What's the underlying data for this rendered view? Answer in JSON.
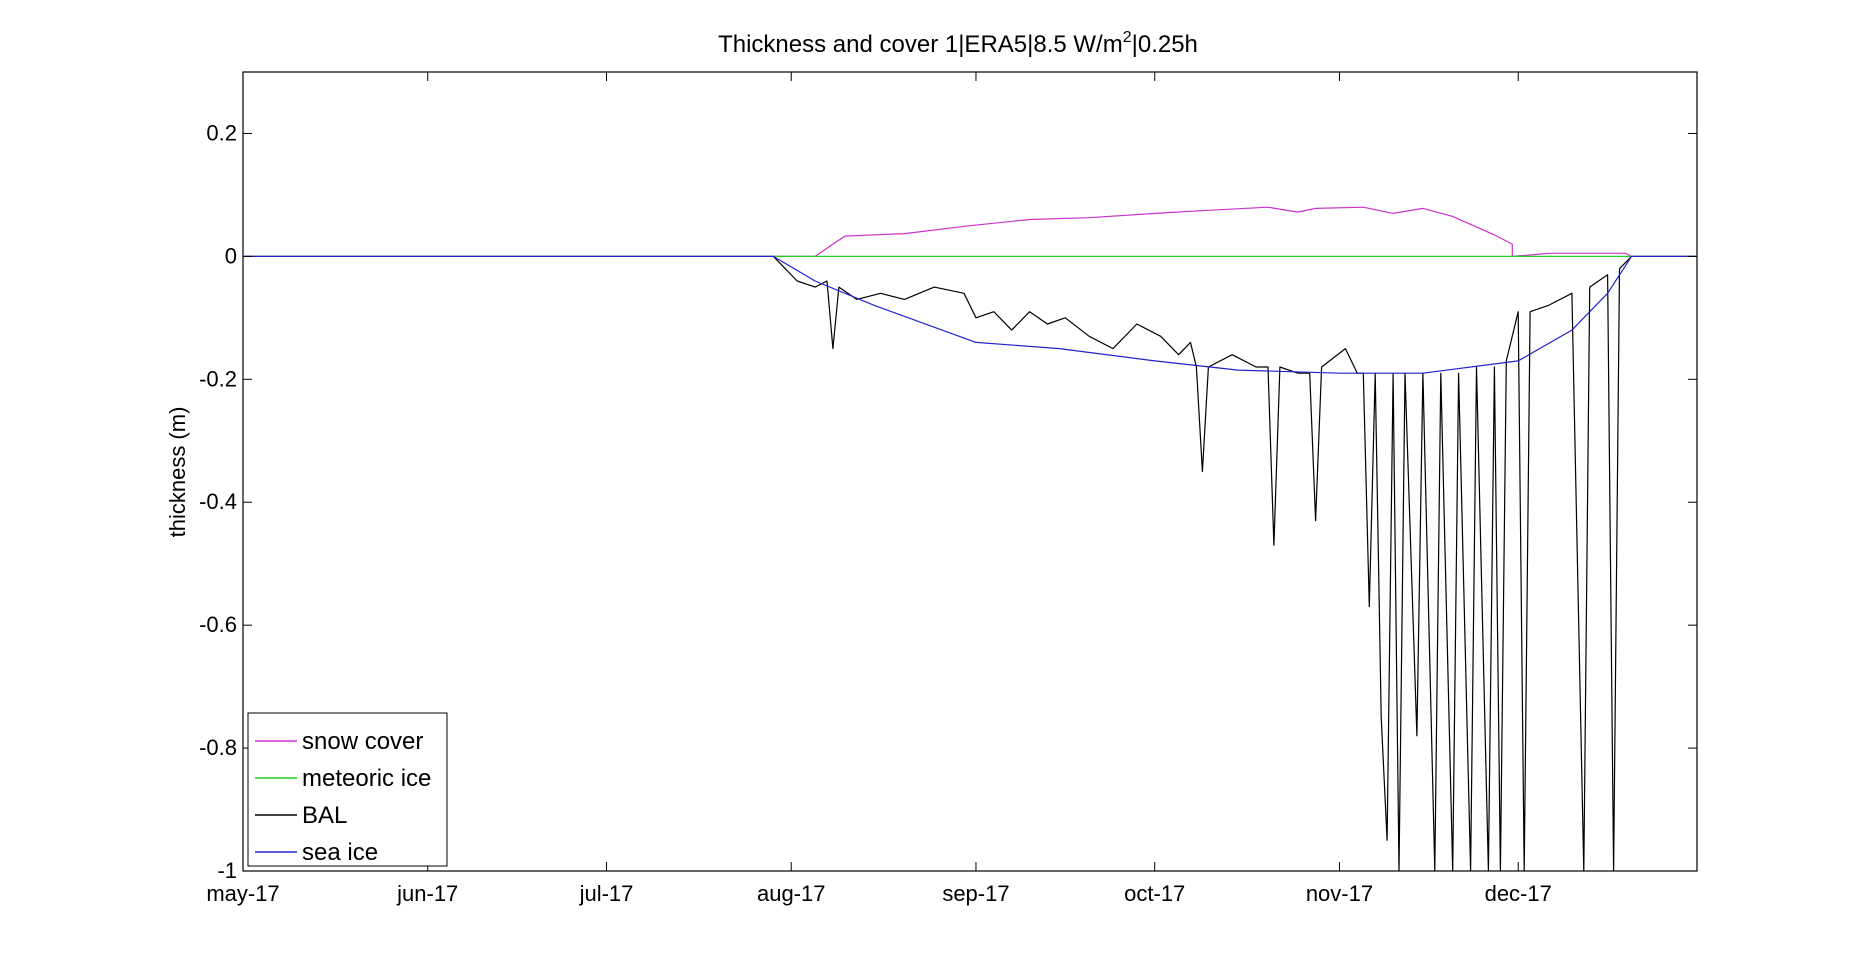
{
  "chart_data": {
    "type": "line",
    "title": {
      "main": "Thickness and cover 1|ERA5|8.5 W/m",
      "sup": "2",
      "tail": "|0.25h"
    },
    "xlabel": "",
    "ylabel": "thickness (m)",
    "x_range": [
      "2017-05-01",
      "2017-12-31"
    ],
    "ylim": [
      -1,
      0.3
    ],
    "x_ticks": [
      {
        "date": "2017-05-01",
        "label": "may-17"
      },
      {
        "date": "2017-06-01",
        "label": "jun-17"
      },
      {
        "date": "2017-07-01",
        "label": "jul-17"
      },
      {
        "date": "2017-08-01",
        "label": "aug-17"
      },
      {
        "date": "2017-09-01",
        "label": "sep-17"
      },
      {
        "date": "2017-10-01",
        "label": "oct-17"
      },
      {
        "date": "2017-11-01",
        "label": "nov-17"
      },
      {
        "date": "2017-12-01",
        "label": "dec-17"
      }
    ],
    "y_ticks": [
      {
        "value": 0.2,
        "label": "0.2"
      },
      {
        "value": 0,
        "label": "0"
      },
      {
        "value": -0.2,
        "label": "-0.2"
      },
      {
        "value": -0.4,
        "label": "-0.4"
      },
      {
        "value": -0.6,
        "label": "-0.6"
      },
      {
        "value": -0.8,
        "label": "-0.8"
      },
      {
        "value": -1,
        "label": "-1"
      }
    ],
    "grid": false,
    "legend_position": "bottom-left",
    "series": [
      {
        "name": "snow cover",
        "color": "#cc33cc",
        "points": [
          [
            "2017-05-01",
            0
          ],
          [
            "2017-08-05",
            0
          ],
          [
            "2017-08-08",
            0.02
          ],
          [
            "2017-08-10",
            0.033
          ],
          [
            "2017-08-20",
            0.037
          ],
          [
            "2017-08-31",
            0.05
          ],
          [
            "2017-09-10",
            0.06
          ],
          [
            "2017-09-20",
            0.063
          ],
          [
            "2017-10-01",
            0.07
          ],
          [
            "2017-10-10",
            0.075
          ],
          [
            "2017-10-20",
            0.08
          ],
          [
            "2017-10-25",
            0.072
          ],
          [
            "2017-10-28",
            0.078
          ],
          [
            "2017-11-05",
            0.08
          ],
          [
            "2017-11-10",
            0.07
          ],
          [
            "2017-11-15",
            0.078
          ],
          [
            "2017-11-20",
            0.065
          ],
          [
            "2017-11-27",
            0.035
          ],
          [
            "2017-11-30",
            0.02
          ],
          [
            "2017-11-30",
            0
          ],
          [
            "2017-12-04",
            0.003
          ],
          [
            "2017-12-06",
            0.005
          ],
          [
            "2017-12-19",
            0.005
          ],
          [
            "2017-12-20",
            0
          ],
          [
            "2017-12-31",
            0
          ]
        ]
      },
      {
        "name": "meteoric ice",
        "color": "#22cc22",
        "points": [
          [
            "2017-05-01",
            0
          ],
          [
            "2017-12-31",
            0
          ]
        ]
      },
      {
        "name": "BAL",
        "color": "#000000",
        "points": [
          [
            "2017-07-29",
            0
          ],
          [
            "2017-08-02",
            -0.04
          ],
          [
            "2017-08-05",
            -0.05
          ],
          [
            "2017-08-07",
            -0.04
          ],
          [
            "2017-08-08",
            -0.15
          ],
          [
            "2017-08-09",
            -0.05
          ],
          [
            "2017-08-12",
            -0.07
          ],
          [
            "2017-08-16",
            -0.06
          ],
          [
            "2017-08-20",
            -0.07
          ],
          [
            "2017-08-25",
            -0.05
          ],
          [
            "2017-08-30",
            -0.06
          ],
          [
            "2017-09-01",
            -0.1
          ],
          [
            "2017-09-04",
            -0.09
          ],
          [
            "2017-09-07",
            -0.12
          ],
          [
            "2017-09-10",
            -0.09
          ],
          [
            "2017-09-13",
            -0.11
          ],
          [
            "2017-09-16",
            -0.1
          ],
          [
            "2017-09-20",
            -0.13
          ],
          [
            "2017-09-24",
            -0.15
          ],
          [
            "2017-09-28",
            -0.11
          ],
          [
            "2017-10-02",
            -0.13
          ],
          [
            "2017-10-05",
            -0.16
          ],
          [
            "2017-10-07",
            -0.14
          ],
          [
            "2017-10-08",
            -0.18
          ],
          [
            "2017-10-09",
            -0.35
          ],
          [
            "2017-10-10",
            -0.18
          ],
          [
            "2017-10-14",
            -0.16
          ],
          [
            "2017-10-18",
            -0.18
          ],
          [
            "2017-10-20",
            -0.18
          ],
          [
            "2017-10-21",
            -0.47
          ],
          [
            "2017-10-22",
            -0.18
          ],
          [
            "2017-10-25",
            -0.19
          ],
          [
            "2017-10-27",
            -0.19
          ],
          [
            "2017-10-28",
            -0.43
          ],
          [
            "2017-10-29",
            -0.18
          ],
          [
            "2017-11-02",
            -0.15
          ],
          [
            "2017-11-04",
            -0.19
          ],
          [
            "2017-11-05",
            -0.19
          ],
          [
            "2017-11-06",
            -0.57
          ],
          [
            "2017-11-07",
            -0.19
          ],
          [
            "2017-11-08",
            -0.75
          ],
          [
            "2017-11-09",
            -0.95
          ],
          [
            "2017-11-10",
            -0.19
          ],
          [
            "2017-11-11",
            -1
          ],
          [
            "2017-11-12",
            -0.19
          ],
          [
            "2017-11-14",
            -0.78
          ],
          [
            "2017-11-15",
            -0.19
          ],
          [
            "2017-11-17",
            -1
          ],
          [
            "2017-11-18",
            -0.19
          ],
          [
            "2017-11-20",
            -1
          ],
          [
            "2017-11-21",
            -0.19
          ],
          [
            "2017-11-23",
            -1
          ],
          [
            "2017-11-24",
            -0.18
          ],
          [
            "2017-11-26",
            -1
          ],
          [
            "2017-11-27",
            -0.18
          ],
          [
            "2017-11-28",
            -1
          ],
          [
            "2017-11-29",
            -0.17
          ],
          [
            "2017-12-01",
            -0.09
          ],
          [
            "2017-12-02",
            -1
          ],
          [
            "2017-12-03",
            -0.09
          ],
          [
            "2017-12-06",
            -0.08
          ],
          [
            "2017-12-10",
            -0.06
          ],
          [
            "2017-12-12",
            -1
          ],
          [
            "2017-12-13",
            -0.05
          ],
          [
            "2017-12-16",
            -0.03
          ],
          [
            "2017-12-17",
            -1
          ],
          [
            "2017-12-18",
            -0.02
          ],
          [
            "2017-12-20",
            0
          ]
        ]
      },
      {
        "name": "sea ice",
        "color": "#2222cc",
        "points": [
          [
            "2017-05-01",
            0
          ],
          [
            "2017-07-29",
            0
          ],
          [
            "2017-08-05",
            -0.04
          ],
          [
            "2017-08-15",
            -0.08
          ],
          [
            "2017-09-01",
            -0.14
          ],
          [
            "2017-09-15",
            -0.15
          ],
          [
            "2017-10-01",
            -0.17
          ],
          [
            "2017-10-15",
            -0.185
          ],
          [
            "2017-11-01",
            -0.19
          ],
          [
            "2017-11-15",
            -0.19
          ],
          [
            "2017-12-01",
            -0.17
          ],
          [
            "2017-12-10",
            -0.12
          ],
          [
            "2017-12-16",
            -0.06
          ],
          [
            "2017-12-20",
            0
          ],
          [
            "2017-12-31",
            0
          ]
        ]
      }
    ]
  }
}
